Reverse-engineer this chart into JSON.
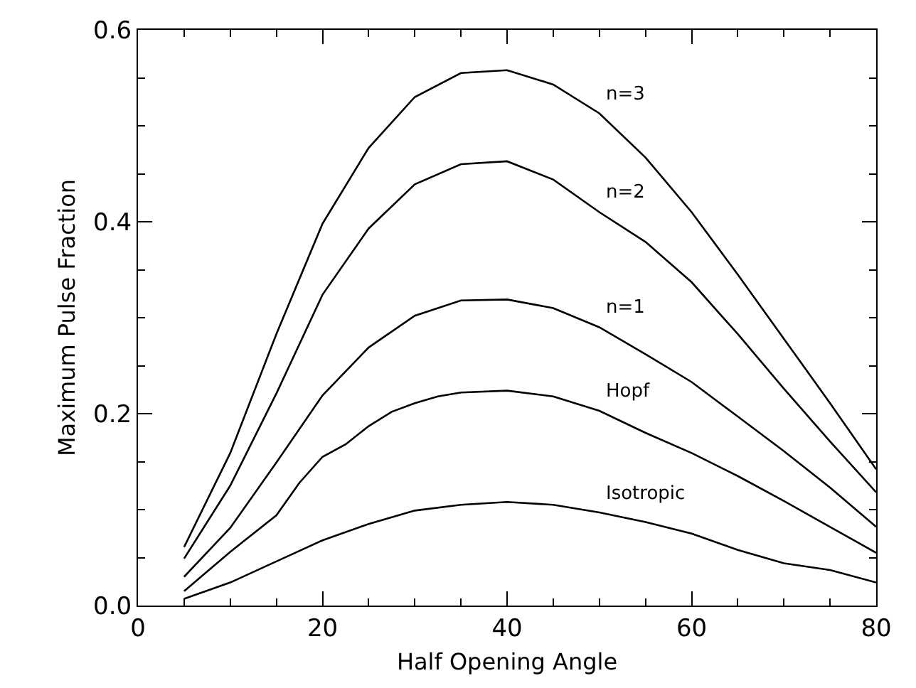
{
  "chart_data": {
    "type": "line",
    "xlabel": "Half Opening Angle",
    "ylabel": "Maximum Pulse Fraction",
    "xlim": [
      0,
      80
    ],
    "ylim": [
      0,
      0.6
    ],
    "xticks": [
      0,
      {
        "value": 5,
        "label": null
      },
      {
        "value": 10,
        "label": null
      },
      {
        "value": 15,
        "label": null
      },
      20,
      {
        "value": 25,
        "label": null
      },
      {
        "value": 30,
        "label": null
      },
      {
        "value": 35,
        "label": null
      },
      40,
      {
        "value": 45,
        "label": null
      },
      {
        "value": 50,
        "label": null
      },
      {
        "value": 55,
        "label": null
      },
      60,
      {
        "value": 65,
        "label": null
      },
      {
        "value": 70,
        "label": null
      },
      {
        "value": 75,
        "label": null
      },
      80
    ],
    "yticks": [
      {
        "value": 0,
        "label": "0.0"
      },
      {
        "value": 0.05,
        "label": null
      },
      {
        "value": 0.1,
        "label": null
      },
      {
        "value": 0.15,
        "label": null
      },
      {
        "value": 0.2,
        "label": "0.2"
      },
      {
        "value": 0.25,
        "label": null
      },
      {
        "value": 0.3,
        "label": null
      },
      {
        "value": 0.35,
        "label": null
      },
      {
        "value": 0.4,
        "label": "0.4"
      },
      {
        "value": 0.45,
        "label": null
      },
      {
        "value": 0.5,
        "label": null
      },
      {
        "value": 0.55,
        "label": null
      },
      {
        "value": 0.6,
        "label": "0.6"
      }
    ],
    "grid": false,
    "legend": false,
    "marker": "none",
    "line_style": "solid",
    "series": [
      {
        "name": "n=3",
        "color": "#000000",
        "x": [
          5,
          10,
          15,
          20,
          25,
          30,
          35,
          40,
          45,
          50,
          55,
          60,
          65,
          70,
          75,
          80
        ],
        "values": [
          0.061,
          0.159,
          0.283,
          0.398,
          0.477,
          0.53,
          0.555,
          0.558,
          0.543,
          0.513,
          0.467,
          0.41,
          0.345,
          0.278,
          0.211,
          0.142
        ]
      },
      {
        "name": "n=2",
        "color": "#000000",
        "x": [
          5,
          10,
          15,
          20,
          25,
          30,
          35,
          40,
          45,
          50,
          55,
          60,
          65,
          70,
          75,
          80
        ],
        "values": [
          0.049,
          0.125,
          0.221,
          0.324,
          0.393,
          0.439,
          0.46,
          0.463,
          0.444,
          0.41,
          0.379,
          0.337,
          0.283,
          0.226,
          0.171,
          0.118
        ]
      },
      {
        "name": "n=1",
        "color": "#000000",
        "x": [
          5,
          10,
          15,
          20,
          25,
          30,
          35,
          40,
          45,
          50,
          55,
          60,
          65,
          70,
          75,
          80
        ],
        "values": [
          0.03,
          0.081,
          0.149,
          0.219,
          0.269,
          0.302,
          0.318,
          0.319,
          0.31,
          0.29,
          0.262,
          0.233,
          0.197,
          0.161,
          0.123,
          0.082
        ]
      },
      {
        "name": "Hopf",
        "color": "#000000",
        "x": [
          5,
          10,
          15,
          17.5,
          20,
          22.5,
          25,
          27.5,
          30,
          32.5,
          35,
          40,
          45,
          50,
          55,
          60,
          65,
          70,
          75,
          80
        ],
        "values": [
          0.015,
          0.056,
          0.094,
          0.128,
          0.155,
          0.168,
          0.187,
          0.202,
          0.211,
          0.218,
          0.222,
          0.224,
          0.218,
          0.203,
          0.18,
          0.159,
          0.135,
          0.109,
          0.082,
          0.055
        ]
      },
      {
        "name": "Isotropic",
        "color": "#000000",
        "x": [
          5,
          10,
          15,
          20,
          25,
          30,
          35,
          40,
          45,
          50,
          55,
          60,
          65,
          70,
          75,
          80
        ],
        "values": [
          0.007,
          0.024,
          0.046,
          0.068,
          0.085,
          0.099,
          0.105,
          0.108,
          0.105,
          0.097,
          0.087,
          0.075,
          0.058,
          0.044,
          0.037,
          0.024
        ]
      }
    ]
  }
}
